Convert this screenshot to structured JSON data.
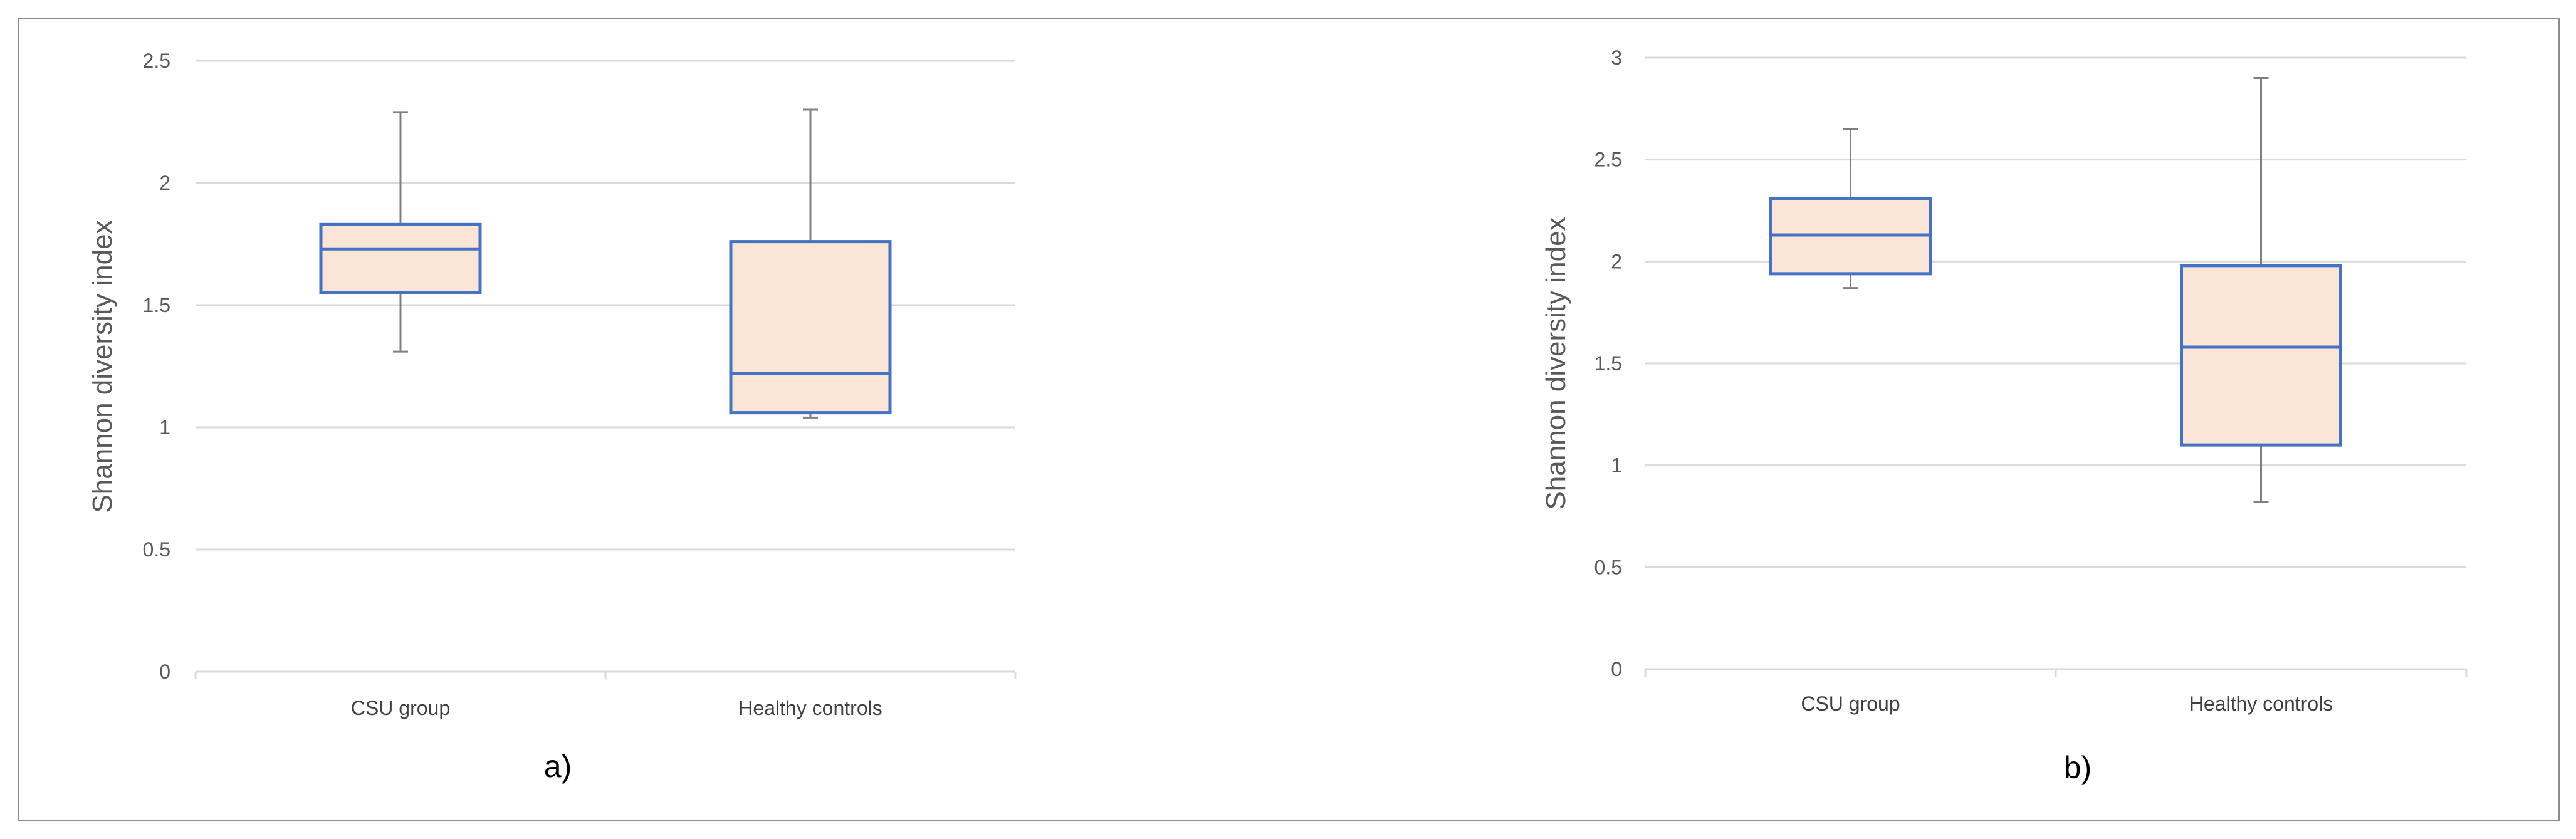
{
  "chart_data": [
    {
      "type": "box",
      "panel_label": "a)",
      "ylabel": "Shannon diversity index",
      "ylim": [
        0,
        2.5
      ],
      "yticks": [
        0,
        0.5,
        1,
        1.5,
        2,
        2.5
      ],
      "ytick_labels": [
        "0",
        "0.5",
        "1",
        "1.5",
        "2",
        "2.5"
      ],
      "grid": true,
      "categories": [
        "CSU group",
        "Healthy controls"
      ],
      "boxes": [
        {
          "category": "CSU group",
          "min": 1.31,
          "q1": 1.55,
          "median": 1.73,
          "q3": 1.83,
          "max": 2.29
        },
        {
          "category": "Healthy controls",
          "min": 1.04,
          "q1": 1.06,
          "median": 1.22,
          "q3": 1.76,
          "max": 2.3
        }
      ],
      "colors": {
        "fill": "#fbe5d6",
        "box_edge": "#4472c4",
        "whisker": "#7f7f7f"
      }
    },
    {
      "type": "box",
      "panel_label": "b)",
      "ylabel": "Shannon diversity index",
      "ylim": [
        0,
        3
      ],
      "yticks": [
        0,
        0.5,
        1,
        1.5,
        2,
        2.5,
        3
      ],
      "ytick_labels": [
        "0",
        "0.5",
        "1",
        "1.5",
        "2",
        "2.5",
        "3"
      ],
      "grid": true,
      "categories": [
        "CSU group",
        "Healthy controls"
      ],
      "boxes": [
        {
          "category": "CSU group",
          "min": 1.87,
          "q1": 1.94,
          "median": 2.13,
          "q3": 2.31,
          "max": 2.65
        },
        {
          "category": "Healthy controls",
          "min": 0.82,
          "q1": 1.1,
          "median": 1.58,
          "q3": 1.98,
          "max": 2.9
        }
      ],
      "colors": {
        "fill": "#fbe5d6",
        "box_edge": "#4472c4",
        "whisker": "#7f7f7f"
      }
    }
  ]
}
